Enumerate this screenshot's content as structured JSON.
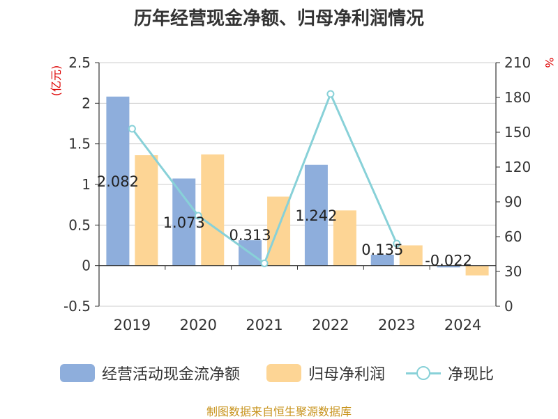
{
  "title": "历年经营现金净额、归母净利润情况",
  "source": "制图数据来自恒生聚源数据库",
  "colors": {
    "cash": "#8eaedc",
    "profit": "#fdd595",
    "ratio": "#88d1d8",
    "axis_unit": "#dd0000",
    "text": "#333333"
  },
  "chart_data": {
    "type": "bar",
    "title": "历年经营现金净额、归母净利润情况",
    "categories": [
      "2019",
      "2020",
      "2021",
      "2022",
      "2023",
      "2024"
    ],
    "ylabel": "(亿元)",
    "y2label": "%",
    "ylim": [
      -0.5,
      2.5
    ],
    "y2lim": [
      0,
      210
    ],
    "yticks": [
      "-0.5",
      "0",
      "0.5",
      "1",
      "1.5",
      "2",
      "2.5"
    ],
    "y2ticks": [
      "0",
      "30",
      "60",
      "90",
      "120",
      "150",
      "180",
      "210"
    ],
    "grid": true,
    "legend_position": "bottom",
    "series": [
      {
        "name": "经营活动现金流净额",
        "type": "bar",
        "axis": "left",
        "values": [
          2.082,
          1.073,
          0.313,
          1.242,
          0.135,
          -0.022
        ],
        "labels": [
          "2.082",
          "1.073",
          "0.313",
          "1.242",
          "0.135",
          "-0.022"
        ]
      },
      {
        "name": "归母净利润",
        "type": "bar",
        "axis": "left",
        "values": [
          1.36,
          1.37,
          0.85,
          0.68,
          0.25,
          -0.12
        ]
      },
      {
        "name": "净现比",
        "type": "line",
        "axis": "right",
        "values": [
          153,
          78,
          37,
          183,
          54,
          null
        ]
      }
    ]
  }
}
